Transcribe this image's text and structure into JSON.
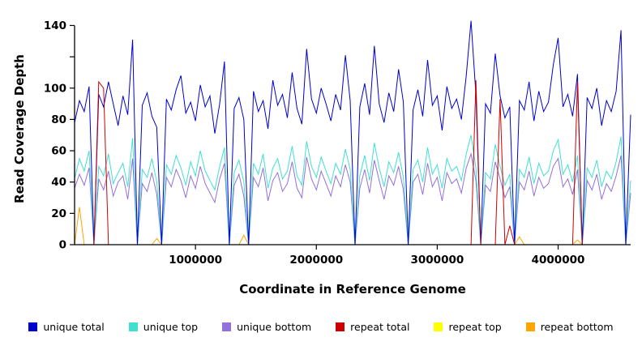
{
  "chart_data": {
    "type": "line",
    "title": "",
    "xlabel": "Coordinate in Reference Genome",
    "ylabel": "Read Coverage Depth",
    "xlim": [
      0,
      4600000
    ],
    "ylim": [
      0,
      148
    ],
    "grid": false,
    "legend_position": "bottom",
    "x_start": 0,
    "x_step": 40000,
    "xticks": [
      1000000,
      2000000,
      3000000,
      4000000
    ],
    "xtick_labels": [
      "1000000",
      "2000000",
      "3000000",
      "4000000"
    ],
    "yticks": [
      0,
      20,
      40,
      60,
      80,
      100,
      120,
      140
    ],
    "ytick_labels": [
      "0",
      "20",
      "40",
      "60",
      "80",
      "100",
      "",
      "140"
    ],
    "legend": [
      {
        "label": "unique total",
        "color": "#0000CD"
      },
      {
        "label": "unique top",
        "color": "#40E0D0"
      },
      {
        "label": "unique bottom",
        "color": "#9370DB"
      },
      {
        "label": "repeat total",
        "color": "#CC0000"
      },
      {
        "label": "repeat top",
        "color": "#FFFF00"
      },
      {
        "label": "repeat bottom",
        "color": "#FFA500"
      }
    ],
    "series": [
      {
        "name": "repeat top",
        "color": "#FFFF00",
        "values": [
          0,
          0,
          0,
          0,
          0,
          0,
          0,
          0,
          0,
          0,
          0,
          0,
          0,
          0,
          0,
          0,
          0,
          0,
          0,
          0,
          0,
          0,
          0,
          0,
          0,
          0,
          0,
          0,
          0,
          0,
          0,
          0,
          0,
          0,
          0,
          0,
          0,
          0,
          0,
          0,
          0,
          0,
          0,
          0,
          0,
          0,
          0,
          0,
          0,
          0,
          0,
          0,
          0,
          0,
          0,
          0,
          0,
          0,
          0,
          0,
          0,
          0,
          0,
          0,
          0,
          0,
          0,
          0,
          0,
          0,
          0,
          0,
          0,
          0,
          0,
          0,
          0,
          0,
          0,
          0,
          0,
          0,
          0,
          0,
          0,
          0,
          0,
          0,
          0,
          0,
          0,
          0,
          0,
          0,
          0,
          0,
          0,
          0,
          0,
          0,
          0,
          0,
          0,
          0,
          0,
          0,
          0,
          0,
          0,
          0,
          0,
          0,
          0,
          0,
          0,
          0
        ]
      },
      {
        "name": "repeat bottom",
        "color": "#FFA500",
        "values": [
          0,
          24,
          0,
          0,
          0,
          0,
          0,
          0,
          0,
          0,
          0,
          0,
          0,
          0,
          0,
          0,
          0,
          4,
          0,
          0,
          0,
          0,
          0,
          0,
          0,
          0,
          0,
          0,
          0,
          0,
          0,
          0,
          0,
          0,
          0,
          6,
          0,
          0,
          0,
          0,
          0,
          0,
          0,
          0,
          0,
          0,
          0,
          0,
          0,
          0,
          0,
          0,
          0,
          0,
          0,
          0,
          0,
          0,
          0,
          0,
          0,
          0,
          0,
          0,
          0,
          0,
          0,
          0,
          0,
          0,
          0,
          0,
          0,
          0,
          0,
          0,
          0,
          0,
          0,
          0,
          0,
          0,
          0,
          0,
          0,
          0,
          0,
          0,
          0,
          0,
          0,
          0,
          5,
          0,
          0,
          0,
          0,
          0,
          0,
          0,
          0,
          0,
          0,
          0,
          3,
          0,
          0,
          0,
          0,
          0,
          0,
          0,
          0,
          0,
          0,
          0
        ]
      },
      {
        "name": "unique bottom",
        "color": "#9370DB",
        "values": [
          36,
          45,
          38,
          49,
          0,
          42,
          35,
          47,
          31,
          40,
          44,
          29,
          55,
          0,
          39,
          34,
          46,
          32,
          0,
          43,
          37,
          48,
          41,
          30,
          44,
          36,
          50,
          39,
          33,
          27,
          42,
          52,
          0,
          38,
          45,
          31,
          0,
          43,
          37,
          49,
          28,
          41,
          46,
          34,
          39,
          53,
          36,
          30,
          56,
          42,
          35,
          47,
          39,
          31,
          44,
          37,
          51,
          40,
          0,
          36,
          48,
          33,
          54,
          41,
          29,
          44,
          38,
          50,
          35,
          0,
          40,
          45,
          32,
          52,
          37,
          43,
          28,
          46,
          39,
          42,
          33,
          49,
          58,
          41,
          0,
          38,
          34,
          53,
          42,
          30,
          37,
          0,
          40,
          35,
          47,
          31,
          43,
          36,
          39,
          50,
          55,
          37,
          42,
          32,
          48,
          0,
          41,
          35,
          45,
          29,
          39,
          34,
          44,
          57,
          0,
          33
        ]
      },
      {
        "name": "unique top",
        "color": "#40E0D0",
        "values": [
          42,
          55,
          47,
          60,
          0,
          50,
          44,
          58,
          39,
          46,
          52,
          37,
          68,
          0,
          48,
          43,
          55,
          40,
          0,
          51,
          45,
          57,
          49,
          38,
          53,
          44,
          60,
          47,
          41,
          35,
          50,
          62,
          0,
          46,
          54,
          40,
          0,
          52,
          45,
          58,
          36,
          49,
          55,
          42,
          47,
          63,
          44,
          38,
          66,
          50,
          43,
          56,
          47,
          39,
          52,
          45,
          61,
          48,
          0,
          44,
          57,
          41,
          65,
          49,
          37,
          53,
          46,
          59,
          43,
          0,
          48,
          54,
          40,
          62,
          45,
          51,
          36,
          55,
          47,
          50,
          41,
          58,
          70,
          49,
          0,
          46,
          42,
          64,
          50,
          38,
          45,
          0,
          48,
          43,
          56,
          39,
          52,
          44,
          47,
          60,
          67,
          45,
          51,
          40,
          57,
          0,
          49,
          43,
          54,
          37,
          47,
          42,
          53,
          69,
          0,
          41
        ]
      },
      {
        "name": "unique total",
        "color": "#0000CD",
        "values": [
          78,
          92,
          85,
          101,
          0,
          96,
          88,
          104,
          90,
          76,
          95,
          83,
          131,
          0,
          89,
          97,
          82,
          75,
          0,
          93,
          86,
          99,
          108,
          84,
          91,
          79,
          102,
          88,
          95,
          71,
          90,
          117,
          0,
          87,
          94,
          80,
          0,
          98,
          85,
          92,
          74,
          105,
          89,
          96,
          81,
          110,
          87,
          77,
          125,
          93,
          84,
          100,
          90,
          79,
          96,
          86,
          121,
          92,
          0,
          88,
          103,
          83,
          127,
          90,
          78,
          97,
          85,
          112,
          91,
          0,
          86,
          99,
          82,
          118,
          89,
          95,
          73,
          101,
          87,
          93,
          80,
          108,
          143,
          96,
          0,
          90,
          84,
          122,
          95,
          81,
          88,
          0,
          92,
          86,
          104,
          79,
          98,
          85,
          91,
          115,
          132,
          88,
          96,
          82,
          109,
          0,
          94,
          87,
          100,
          76,
          92,
          85,
          98,
          137,
          0,
          83
        ]
      },
      {
        "name": "repeat total",
        "color": "#CC0000",
        "values": [
          0,
          0,
          0,
          0,
          0,
          104,
          100,
          0,
          0,
          0,
          0,
          0,
          0,
          0,
          0,
          0,
          0,
          0,
          0,
          0,
          0,
          0,
          0,
          0,
          0,
          0,
          0,
          0,
          0,
          0,
          0,
          0,
          0,
          0,
          0,
          0,
          0,
          0,
          0,
          0,
          0,
          0,
          0,
          0,
          0,
          0,
          0,
          0,
          0,
          0,
          0,
          0,
          0,
          0,
          0,
          0,
          0,
          0,
          0,
          0,
          0,
          0,
          0,
          0,
          0,
          0,
          0,
          0,
          0,
          0,
          0,
          0,
          0,
          0,
          0,
          0,
          0,
          0,
          0,
          0,
          0,
          0,
          0,
          105,
          0,
          0,
          0,
          0,
          93,
          0,
          12,
          0,
          0,
          0,
          0,
          0,
          0,
          0,
          0,
          0,
          0,
          0,
          0,
          0,
          104,
          0,
          0,
          0,
          0,
          0,
          0,
          0,
          0,
          0,
          0,
          0
        ]
      }
    ]
  }
}
